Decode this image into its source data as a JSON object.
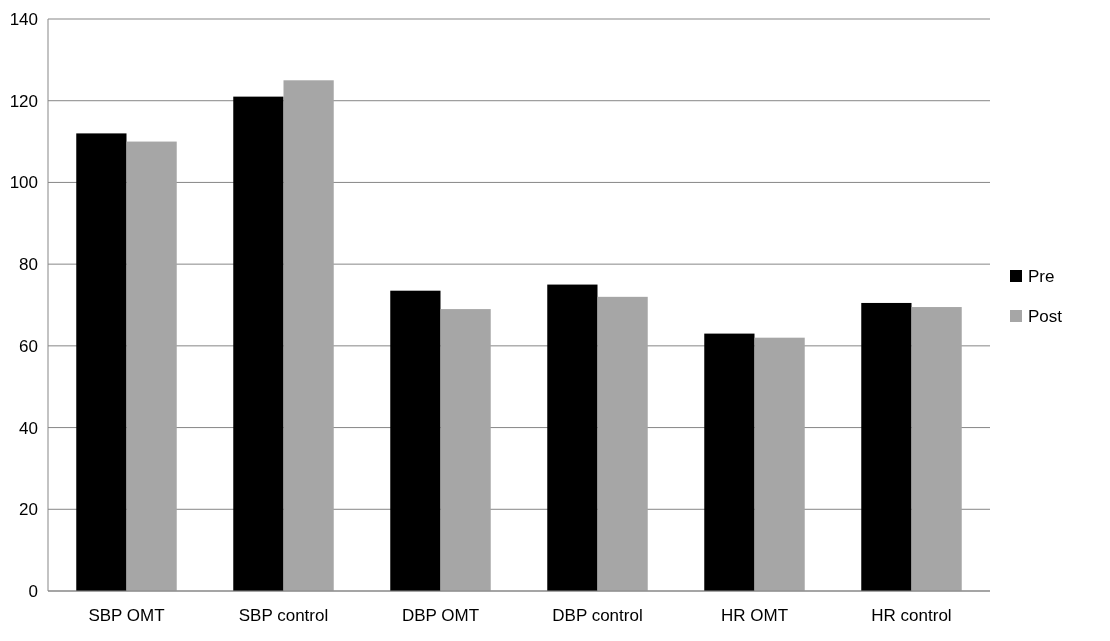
{
  "chart_data": {
    "type": "bar",
    "categories": [
      "SBP OMT",
      "SBP control",
      "DBP OMT",
      "DBP control",
      "HR OMT",
      "HR control"
    ],
    "series": [
      {
        "name": "Pre",
        "color": "#000000",
        "values": [
          112,
          121,
          73.5,
          75,
          63,
          70.5
        ]
      },
      {
        "name": "Post",
        "color": "#a6a6a6",
        "values": [
          110,
          125,
          69,
          72,
          62,
          69.5
        ]
      }
    ],
    "ylim": [
      0,
      140
    ],
    "yticks": [
      0,
      20,
      40,
      60,
      80,
      100,
      120,
      140
    ],
    "grid": "y",
    "legend": "right"
  }
}
